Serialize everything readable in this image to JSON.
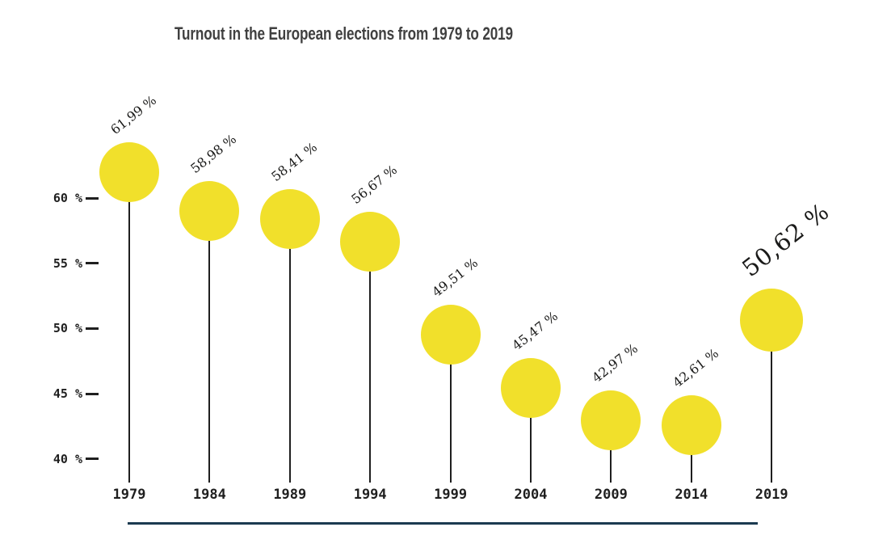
{
  "title": "Turnout in the European elections from 1979 to 2019",
  "chart_data": {
    "type": "lollipop",
    "title": "Turnout in the European elections from 1979 to 2019",
    "categories": [
      "1979",
      "1984",
      "1989",
      "1994",
      "1999",
      "2004",
      "2009",
      "2014",
      "2019"
    ],
    "values": [
      61.99,
      58.98,
      58.41,
      56.67,
      49.51,
      45.47,
      42.97,
      42.61,
      50.62
    ],
    "value_labels": [
      "61,99 %",
      "58,98 %",
      "58,41 %",
      "56,67 %",
      "49,51 %",
      "45,47 %",
      "42,97 %",
      "42,61 %",
      "50,62 %"
    ],
    "highlight_index": 8,
    "yticks": {
      "values": [
        60,
        55,
        50,
        45,
        40
      ],
      "labels": [
        "60 %",
        "55 %",
        "50 %",
        "45 %",
        "40 %"
      ]
    },
    "ylim": [
      38,
      64
    ],
    "xlabel": "",
    "ylabel": "",
    "grid": false,
    "legend": "none",
    "value_label_rotation_deg": -38,
    "colors": {
      "dot": "#f1e02b",
      "stem": "#1f1f1f",
      "baseline": "#1b3a50",
      "value_label": "#1a1a19",
      "axis_label": "#1f1f1f",
      "title": "#404040"
    }
  }
}
